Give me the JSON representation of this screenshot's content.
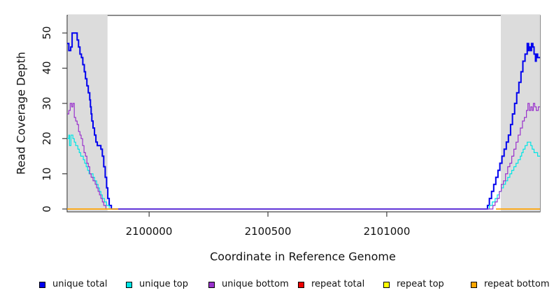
{
  "chart_data": {
    "type": "line",
    "title": "",
    "xlabel": "Coordinate in Reference Genome",
    "ylabel": "Read Coverage Depth",
    "xlim": [
      2099655,
      2101645
    ],
    "ylim": [
      -0.8,
      55
    ],
    "xticks": [
      2100000,
      2100500,
      2101000
    ],
    "xtick_labels": [
      "2100000",
      "2100500",
      "2101000"
    ],
    "yticks": [
      0,
      10,
      20,
      30,
      40,
      50
    ],
    "ytick_labels": [
      "0",
      "10",
      "20",
      "30",
      "40",
      "50"
    ],
    "grid": false,
    "legend_position": "bottom",
    "box_color": "#3f3f3f",
    "shade_color": "#dcdcdc",
    "shaded_regions": [
      {
        "x0": 2099655,
        "x1": 2099825
      },
      {
        "x0": 2101480,
        "x1": 2101645
      }
    ],
    "series": [
      {
        "name": "unique total",
        "color": "#0000ee",
        "line_width": 2,
        "segments": [
          [
            [
              2099655,
              47
            ],
            [
              2099662,
              45
            ],
            [
              2099670,
              46
            ],
            [
              2099676,
              50
            ],
            [
              2099697,
              48
            ],
            [
              2099703,
              46
            ],
            [
              2099709,
              44
            ],
            [
              2099715,
              43
            ],
            [
              2099721,
              41
            ],
            [
              2099727,
              39
            ],
            [
              2099732,
              37
            ],
            [
              2099738,
              35
            ],
            [
              2099744,
              33
            ],
            [
              2099750,
              31
            ],
            [
              2099753,
              29
            ],
            [
              2099756,
              27
            ],
            [
              2099759,
              25
            ],
            [
              2099764,
              23
            ],
            [
              2099770,
              21
            ],
            [
              2099776,
              19
            ],
            [
              2099782,
              18
            ],
            [
              2099797,
              17
            ],
            [
              2099803,
              15
            ],
            [
              2099809,
              12
            ],
            [
              2099815,
              9
            ],
            [
              2099821,
              6
            ],
            [
              2099826,
              3
            ],
            [
              2099832,
              1
            ],
            [
              2099841,
              0
            ],
            [
              2101424,
              1
            ],
            [
              2101432,
              3
            ],
            [
              2101441,
              5
            ],
            [
              2101450,
              7
            ],
            [
              2101459,
              9
            ],
            [
              2101468,
              11
            ],
            [
              2101476,
              13
            ],
            [
              2101485,
              15
            ],
            [
              2101494,
              17
            ],
            [
              2101503,
              19
            ],
            [
              2101512,
              21
            ],
            [
              2101521,
              24
            ],
            [
              2101529,
              27
            ],
            [
              2101538,
              30
            ],
            [
              2101547,
              33
            ],
            [
              2101556,
              36
            ],
            [
              2101565,
              39
            ],
            [
              2101573,
              42
            ],
            [
              2101582,
              44
            ],
            [
              2101591,
              47
            ],
            [
              2101597,
              45
            ],
            [
              2101600,
              46
            ],
            [
              2101606,
              45
            ],
            [
              2101609,
              47
            ],
            [
              2101615,
              46
            ],
            [
              2101620,
              44
            ],
            [
              2101626,
              42
            ],
            [
              2101629,
              44
            ],
            [
              2101635,
              43
            ],
            [
              2101645,
              43
            ]
          ]
        ]
      },
      {
        "name": "unique top",
        "color": "#00e5e5",
        "line_width": 1.2,
        "segments": [
          [
            [
              2099655,
              20
            ],
            [
              2099662,
              21
            ],
            [
              2099665,
              18
            ],
            [
              2099671,
              21
            ],
            [
              2099679,
              20
            ],
            [
              2099685,
              19
            ],
            [
              2099691,
              18
            ],
            [
              2099700,
              17
            ],
            [
              2099706,
              16
            ],
            [
              2099712,
              15
            ],
            [
              2099723,
              14
            ],
            [
              2099729,
              13
            ],
            [
              2099735,
              12
            ],
            [
              2099741,
              11
            ],
            [
              2099747,
              10
            ],
            [
              2099759,
              10
            ],
            [
              2099764,
              9
            ],
            [
              2099770,
              8
            ],
            [
              2099779,
              7
            ],
            [
              2099785,
              6
            ],
            [
              2099791,
              5
            ],
            [
              2099797,
              4
            ],
            [
              2099803,
              3
            ],
            [
              2099812,
              2
            ],
            [
              2099821,
              1
            ],
            [
              2099832,
              0
            ],
            [
              2101432,
              1
            ],
            [
              2101444,
              2
            ],
            [
              2101456,
              3
            ],
            [
              2101465,
              4
            ],
            [
              2101474,
              5
            ],
            [
              2101482,
              6
            ],
            [
              2101491,
              7
            ],
            [
              2101500,
              8
            ],
            [
              2101509,
              9
            ],
            [
              2101518,
              10
            ],
            [
              2101526,
              11
            ],
            [
              2101535,
              12
            ],
            [
              2101544,
              13
            ],
            [
              2101553,
              14
            ],
            [
              2101562,
              15
            ],
            [
              2101568,
              16
            ],
            [
              2101574,
              17
            ],
            [
              2101582,
              18
            ],
            [
              2101591,
              19
            ],
            [
              2101603,
              19
            ],
            [
              2101606,
              18
            ],
            [
              2101612,
              17
            ],
            [
              2101620,
              16
            ],
            [
              2101629,
              16
            ],
            [
              2101635,
              15
            ],
            [
              2101645,
              15
            ]
          ]
        ]
      },
      {
        "name": "unique bottom",
        "color": "#9932cc",
        "line_width": 1.2,
        "segments": [
          [
            [
              2099655,
              27
            ],
            [
              2099662,
              28
            ],
            [
              2099668,
              30
            ],
            [
              2099674,
              29
            ],
            [
              2099679,
              30
            ],
            [
              2099685,
              26
            ],
            [
              2099691,
              25
            ],
            [
              2099697,
              24
            ],
            [
              2099703,
              22
            ],
            [
              2099709,
              21
            ],
            [
              2099714,
              20
            ],
            [
              2099720,
              18
            ],
            [
              2099726,
              16
            ],
            [
              2099732,
              15
            ],
            [
              2099738,
              13
            ],
            [
              2099744,
              12
            ],
            [
              2099750,
              10
            ],
            [
              2099756,
              9
            ],
            [
              2099764,
              8
            ],
            [
              2099773,
              7
            ],
            [
              2099779,
              6
            ],
            [
              2099785,
              5
            ],
            [
              2099791,
              4
            ],
            [
              2099797,
              3
            ],
            [
              2099803,
              2
            ],
            [
              2099809,
              1
            ],
            [
              2099818,
              0
            ],
            [
              2101447,
              1
            ],
            [
              2101456,
              2
            ],
            [
              2101465,
              3
            ],
            [
              2101474,
              5
            ],
            [
              2101482,
              7
            ],
            [
              2101491,
              8
            ],
            [
              2101500,
              10
            ],
            [
              2101509,
              12
            ],
            [
              2101518,
              13
            ],
            [
              2101526,
              15
            ],
            [
              2101535,
              17
            ],
            [
              2101544,
              19
            ],
            [
              2101553,
              21
            ],
            [
              2101562,
              23
            ],
            [
              2101571,
              25
            ],
            [
              2101579,
              26
            ],
            [
              2101588,
              28
            ],
            [
              2101594,
              30
            ],
            [
              2101600,
              28
            ],
            [
              2101606,
              29
            ],
            [
              2101612,
              28
            ],
            [
              2101617,
              30
            ],
            [
              2101623,
              29
            ],
            [
              2101629,
              28
            ],
            [
              2101638,
              29
            ],
            [
              2101645,
              29
            ]
          ]
        ]
      },
      {
        "name": "repeat total",
        "color": "#ee0000",
        "line_width": 1.2,
        "segments": [
          [
            [
              2099655,
              0
            ],
            [
              2099870,
              0
            ]
          ],
          [
            [
              2101460,
              0
            ],
            [
              2101645,
              0
            ]
          ]
        ]
      },
      {
        "name": "repeat top",
        "color": "#ffff00",
        "line_width": 1.2,
        "segments": [
          [
            [
              2099655,
              0
            ],
            [
              2099870,
              0
            ]
          ],
          [
            [
              2101460,
              0
            ],
            [
              2101645,
              0
            ]
          ]
        ]
      },
      {
        "name": "repeat bottom",
        "color": "#ffa500",
        "line_width": 1.5,
        "segments": [
          [
            [
              2099655,
              0
            ],
            [
              2099870,
              0
            ]
          ],
          [
            [
              2101460,
              0
            ],
            [
              2101645,
              0
            ]
          ]
        ]
      }
    ]
  }
}
